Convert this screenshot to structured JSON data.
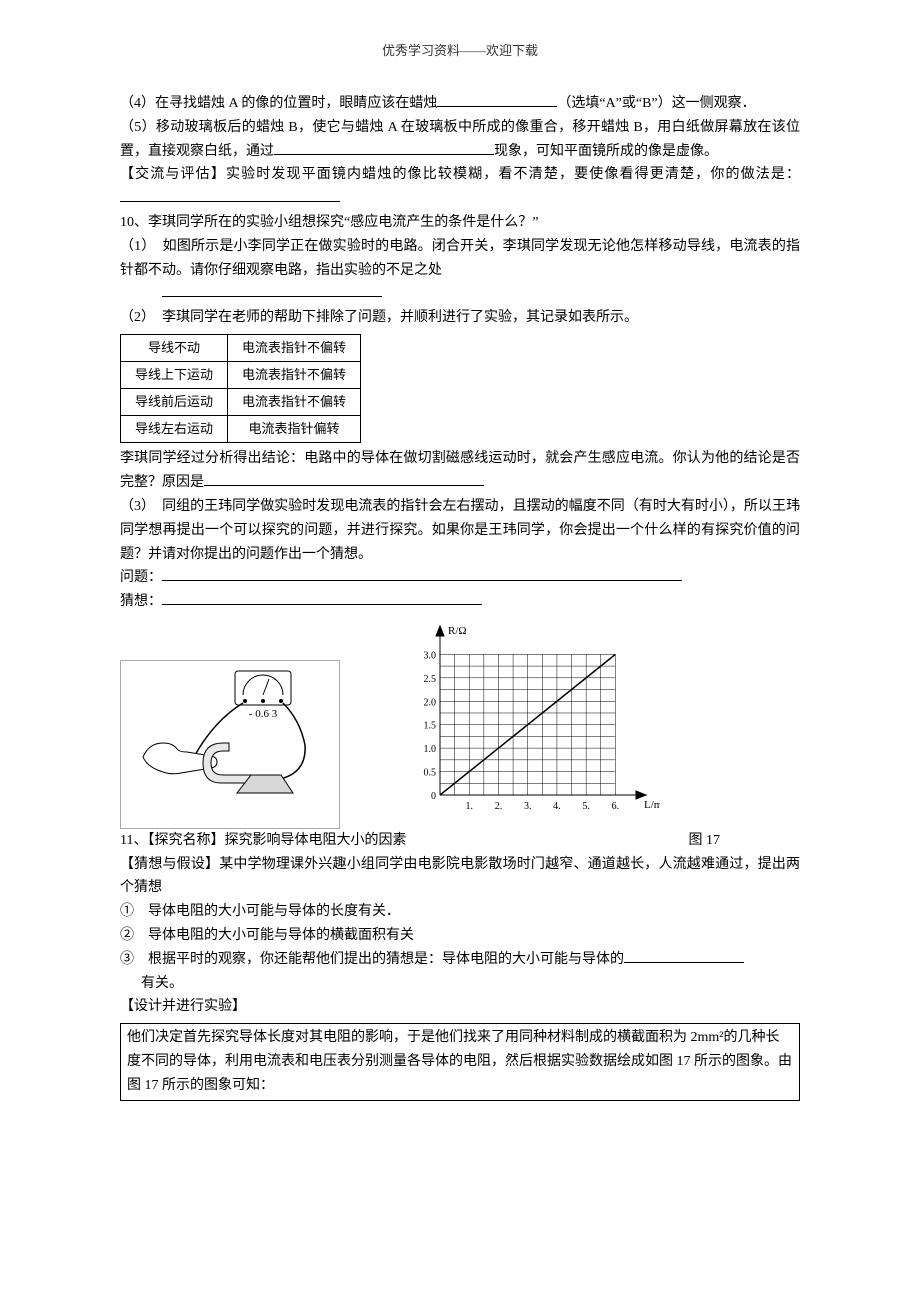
{
  "header": "优秀学习资料——欢迎下载",
  "q4": {
    "prefix": "（4）在寻找蜡烛 A 的像的位置时，眼睛应该在蜡烛",
    "suffix": "（选填“A”或“B”）这一侧观察．"
  },
  "q5": {
    "t1": "（5）移动玻璃板后的蜡烛 B，使它与蜡烛 A 在玻璃板中所成的像重合，移开蜡烛 B，用白纸做屏幕放在该位置，直接观察白纸，通过",
    "t2": "现象，可知平面镜所成的像是虚像。"
  },
  "exchange": {
    "t1": "【交流与评估】实验时发现平面镜内蜡烛的像比较模糊，看不清楚，要使像看得更清楚，你的做法是："
  },
  "q10": {
    "intro": "10、李琪同学所在的实验小组想探究“感应电流产生的条件是什么？”",
    "p1": "（1）　如图所示是小李同学正在做实验时的电路。闭合开关，李琪同学发现无论他怎样移动导线，电流表的指针都不动。请你仔细观察电路，指出实验的不足之处",
    "p2": "（2）　李琪同学在老师的帮助下排除了问题，并顺利进行了实验，其记录如表所示。",
    "table": {
      "rows": [
        [
          "导线不动",
          "电流表指针不偏转"
        ],
        [
          "导线上下运动",
          "电流表指针不偏转"
        ],
        [
          "导线前后运动",
          "电流表指针不偏转"
        ],
        [
          "导线左右运动",
          "电流表指针偏转"
        ]
      ]
    },
    "concl": "李琪同学经过分析得出结论：电路中的导体在做切割磁感线运动时，就会产生感应电流。你认为他的结论是否完整？原因是",
    "p3": "（3）　同组的王玮同学做实验时发现电流表的指针会左右摆动，且摆动的幅度不同（有时大有时小），所以王玮同学想再提出一个可以探究的问题，并进行探究。如果你是王玮同学，你会提出一个什么样的有探究价值的问题？并请对你提出的问题作出一个猜想。",
    "qlabel": "问题：",
    "glabel": "猜想："
  },
  "fig_left": {
    "ammeter_top": "A",
    "ammeter_scale": "-  0.6  3"
  },
  "chart": {
    "type": "line",
    "y_label": "R/Ω",
    "x_label": "L/m",
    "x_ticks": [
      "1.",
      "2.",
      "3.",
      "4.",
      "5.",
      "6."
    ],
    "y_ticks": [
      "0",
      "0.5",
      "1.0",
      "1.5",
      "2.0",
      "2.5",
      "3.0"
    ],
    "xlim": [
      0,
      6.5
    ],
    "ylim": [
      0,
      3.2
    ],
    "grid_color": "#000000",
    "axis_color": "#000000",
    "line_color": "#000000",
    "background": "#ffffff",
    "points": [
      [
        0,
        0
      ],
      [
        6,
        3
      ]
    ],
    "caption": "图 17"
  },
  "q11": {
    "title": "11、【探究名称】探究影响导体电阻大小的因素",
    "hyp_head": "【猜想与假设】某中学物理课外兴趣小组同学由电影院电影散场时门越窄、通道越长，人流越难通过，提出两个猜想",
    "h1": "①　导体电阻的大小可能与导体的长度有关．",
    "h2": "②　导体电阻的大小可能与导体的横截面积有关",
    "h3a": "③　根据平时的观察，你还能帮他们提出的猜想是：导体电阻的大小可能与导体的",
    "h3b": "有关。",
    "design_head": "【设计并进行实验】",
    "design_body": "他们决定首先探究导体长度对其电阻的影响，于是他们找来了用同种材料制成的横截面积为 2mm²的几种长度不同的导体，利用电流表和电压表分别测量各导体的电阻，然后根据实验数据绘成如图 17 所示的图象。由图 17 所示的图象可知："
  }
}
